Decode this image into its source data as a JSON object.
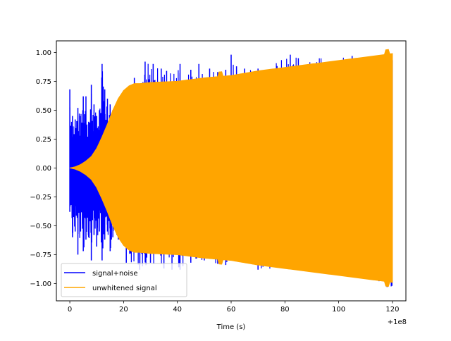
{
  "chart_data": {
    "type": "line",
    "title": "",
    "xlabel": "Time (s)",
    "ylabel": "",
    "x_offset_label": "+1e8",
    "xlim": [
      -5,
      125
    ],
    "ylim": [
      -1.15,
      1.1
    ],
    "xticks": [
      0,
      20,
      40,
      60,
      80,
      100,
      120
    ],
    "xtick_labels": [
      "0",
      "20",
      "40",
      "60",
      "80",
      "100",
      "120"
    ],
    "yticks": [
      -1.0,
      -0.75,
      -0.5,
      -0.25,
      0.0,
      0.25,
      0.5,
      0.75,
      1.0
    ],
    "ytick_labels": [
      "−1.00",
      "−0.75",
      "−0.50",
      "−0.25",
      "0.00",
      "0.25",
      "0.50",
      "0.75",
      "1.00"
    ],
    "grid": false,
    "legend_position": "lower-left",
    "series": [
      {
        "name": "signal+noise",
        "color": "#0000ff",
        "peaks": [
          [
            0,
            0.68
          ],
          [
            1,
            0.45
          ],
          [
            2,
            0.42
          ],
          [
            3,
            0.52
          ],
          [
            4,
            0.45
          ],
          [
            5,
            0.62
          ],
          [
            6,
            0.62
          ],
          [
            7,
            0.4
          ],
          [
            8,
            0.72
          ],
          [
            9,
            0.55
          ],
          [
            10,
            0.45
          ],
          [
            11,
            0.5
          ],
          [
            12,
            0.9
          ],
          [
            13,
            0.68
          ],
          [
            14,
            0.6
          ],
          [
            15,
            0.55
          ],
          [
            16,
            0.5
          ],
          [
            20,
            0.45
          ],
          [
            24,
            0.78
          ],
          [
            26,
            0.58
          ],
          [
            28,
            0.92
          ],
          [
            31,
            0.9
          ],
          [
            34,
            0.86
          ],
          [
            36,
            0.84
          ],
          [
            41,
            0.9
          ],
          [
            42,
            0.75
          ],
          [
            45,
            0.85
          ],
          [
            48,
            0.9
          ],
          [
            52,
            0.86
          ],
          [
            55,
            0.83
          ],
          [
            56,
            0.82
          ],
          [
            58,
            0.85
          ],
          [
            60,
            0.98
          ],
          [
            62,
            0.88
          ],
          [
            65,
            0.86
          ],
          [
            70,
            0.86
          ],
          [
            82,
            0.98
          ],
          [
            85,
            0.95
          ],
          [
            105,
            0.97
          ],
          [
            118,
            0.97
          ]
        ],
        "troughs": [
          [
            0,
            -0.38
          ],
          [
            1,
            -0.6
          ],
          [
            2,
            -0.55
          ],
          [
            3,
            -0.75
          ],
          [
            4,
            -0.55
          ],
          [
            5,
            -0.72
          ],
          [
            6,
            -0.62
          ],
          [
            7,
            -0.6
          ],
          [
            8,
            -0.8
          ],
          [
            9,
            -0.58
          ],
          [
            10,
            -0.68
          ],
          [
            11,
            -0.55
          ],
          [
            12,
            -0.8
          ],
          [
            13,
            -0.62
          ],
          [
            14,
            -0.55
          ],
          [
            15,
            -0.72
          ],
          [
            16,
            -0.6
          ],
          [
            18,
            -0.62
          ],
          [
            21,
            -0.82
          ],
          [
            26,
            -0.88
          ],
          [
            30,
            -0.82
          ],
          [
            35,
            -0.87
          ],
          [
            38,
            -0.88
          ],
          [
            41,
            -0.88
          ],
          [
            45,
            -0.82
          ],
          [
            50,
            -0.8
          ],
          [
            55,
            -0.83
          ],
          [
            58,
            -0.84
          ],
          [
            62,
            -0.8
          ],
          [
            70,
            -0.88
          ],
          [
            80,
            -0.86
          ],
          [
            85,
            -0.88
          ],
          [
            100,
            -0.9
          ],
          [
            110,
            -0.95
          ],
          [
            115,
            -0.98
          ],
          [
            118,
            -1.03
          ]
        ]
      },
      {
        "name": "unwhitened signal",
        "color": "#ffa500",
        "envelope": [
          [
            0,
            0.0
          ],
          [
            2,
            0.01
          ],
          [
            4,
            0.03
          ],
          [
            6,
            0.06
          ],
          [
            8,
            0.1
          ],
          [
            10,
            0.17
          ],
          [
            12,
            0.27
          ],
          [
            14,
            0.38
          ],
          [
            16,
            0.5
          ],
          [
            18,
            0.6
          ],
          [
            20,
            0.67
          ],
          [
            22,
            0.71
          ],
          [
            24,
            0.73
          ],
          [
            26,
            0.73
          ],
          [
            30,
            0.74
          ],
          [
            40,
            0.75
          ],
          [
            50,
            0.78
          ],
          [
            55,
            0.79
          ],
          [
            60,
            0.8
          ],
          [
            70,
            0.84
          ],
          [
            80,
            0.87
          ],
          [
            90,
            0.9
          ],
          [
            100,
            0.93
          ],
          [
            110,
            0.96
          ],
          [
            120,
            0.99
          ]
        ]
      }
    ]
  }
}
